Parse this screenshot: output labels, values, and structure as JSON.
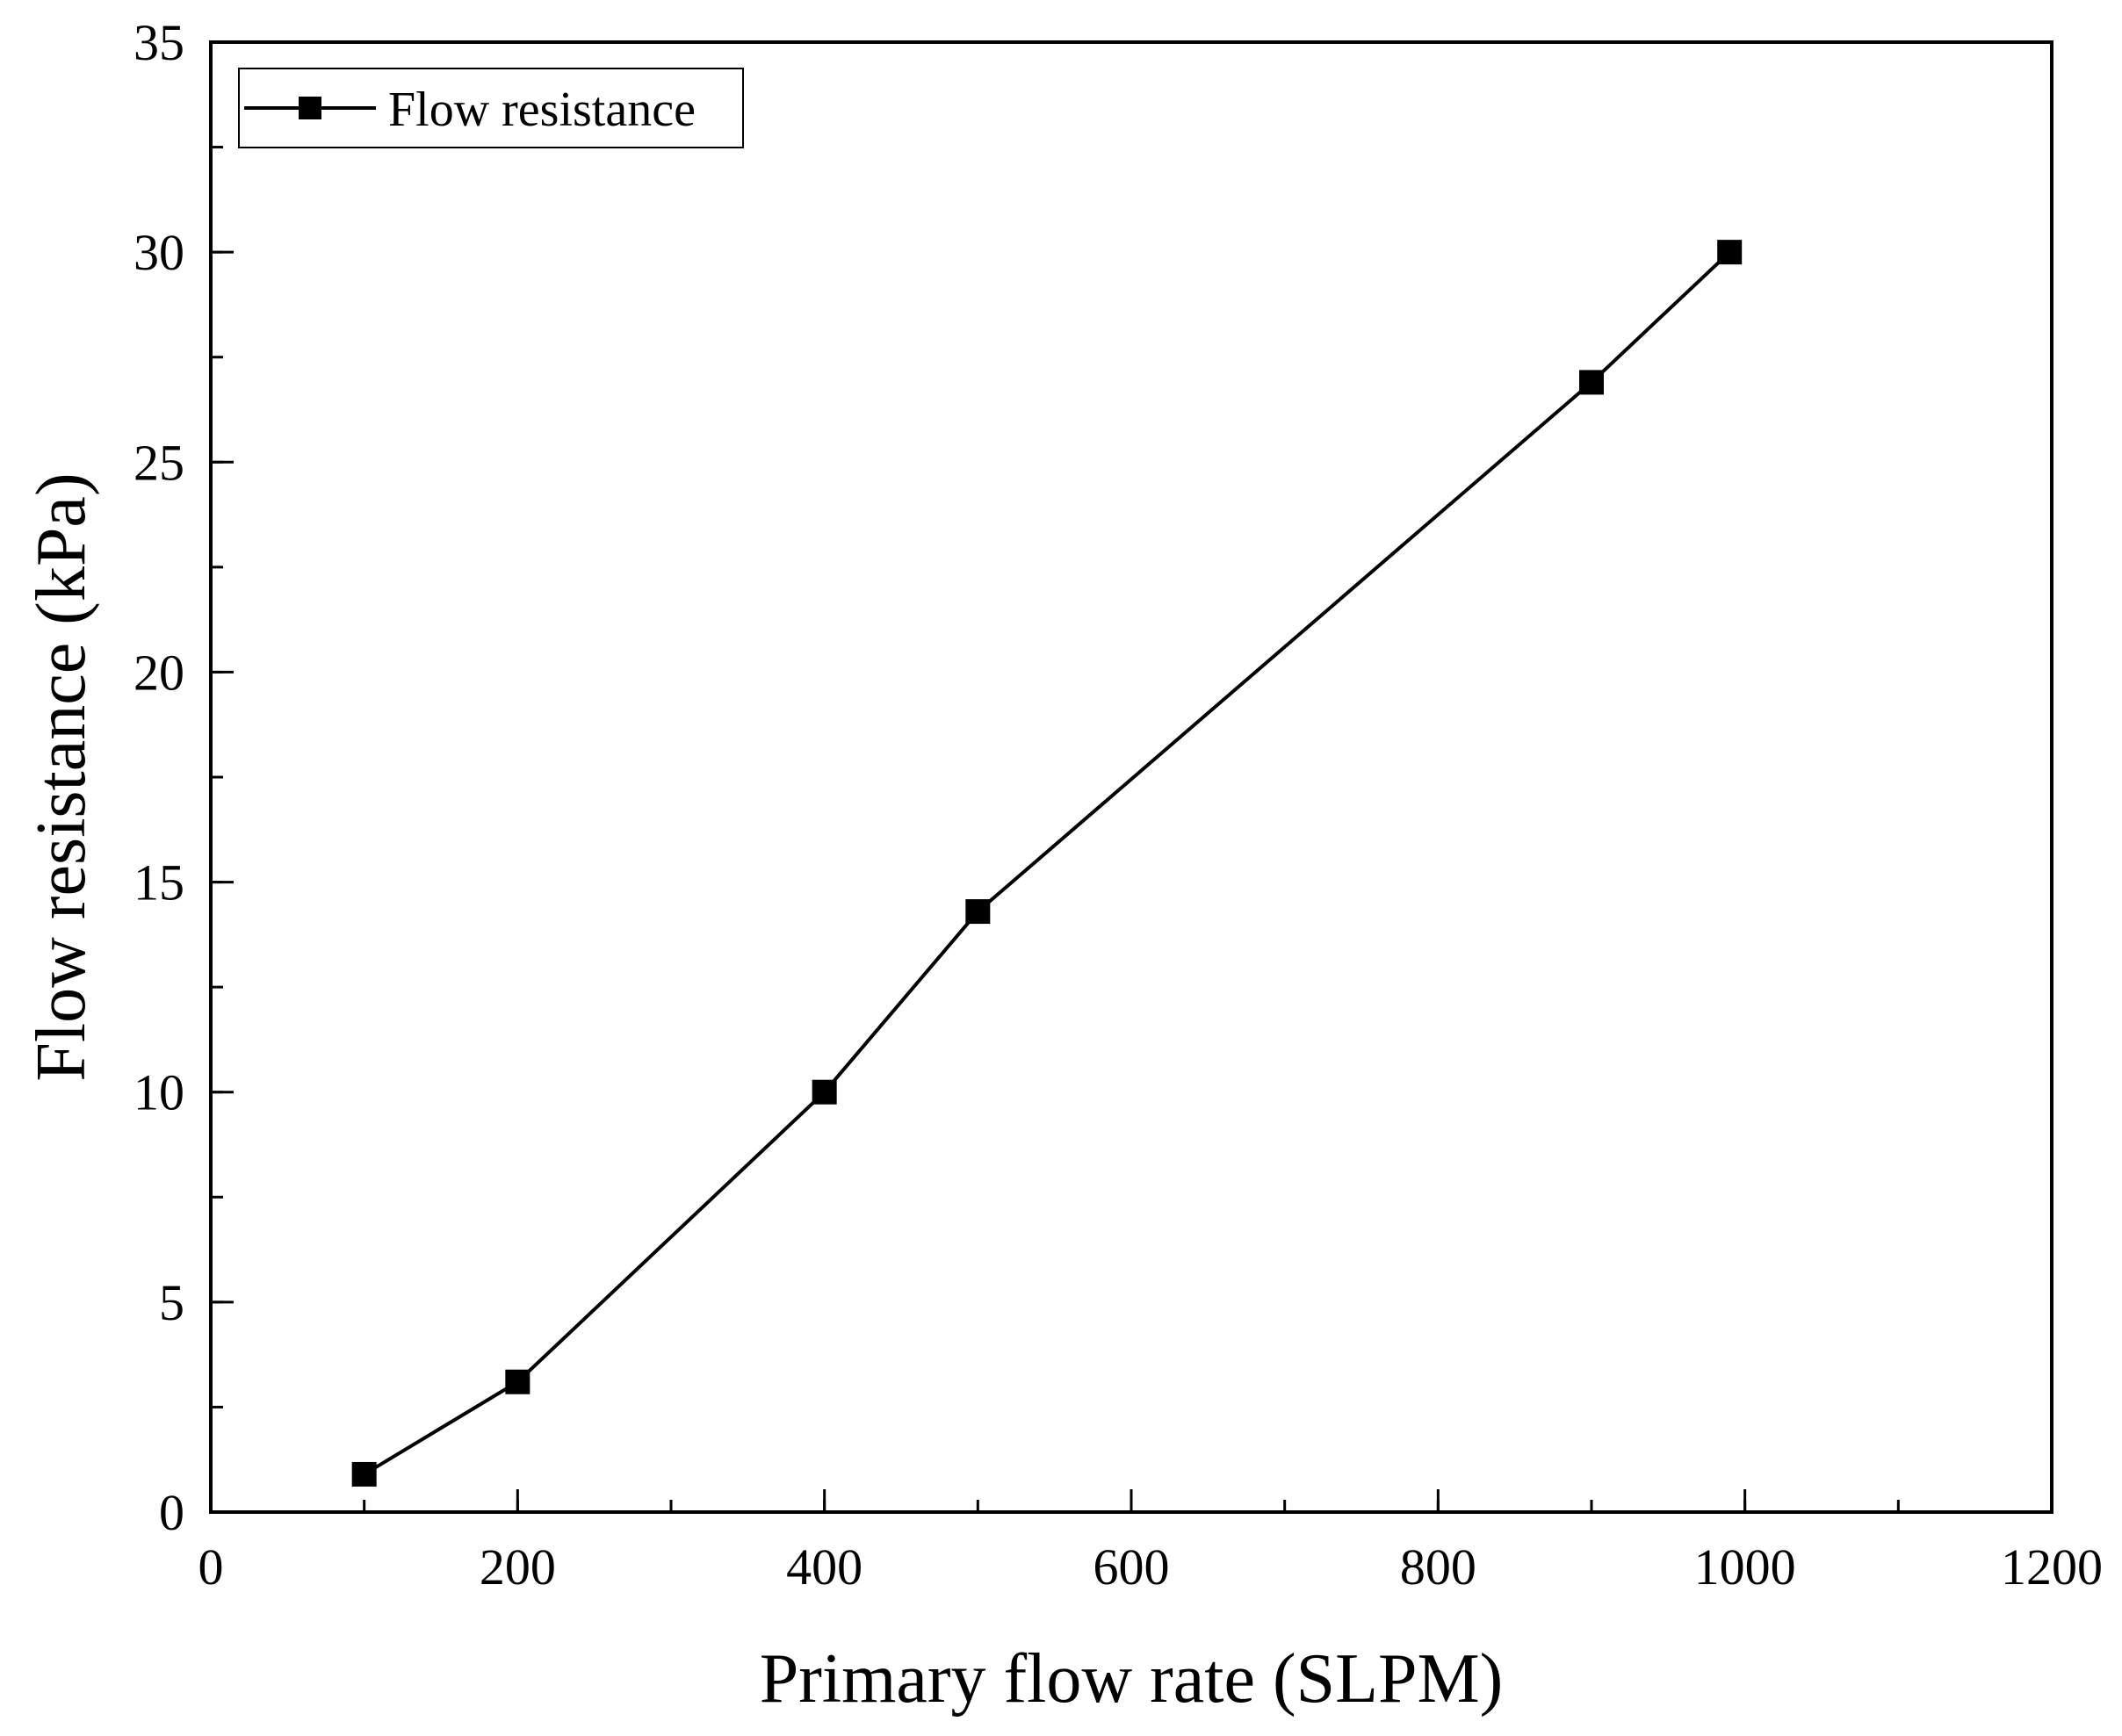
{
  "chart_data": {
    "type": "line",
    "title": "",
    "xlabel": "Primary flow rate (SLPM)",
    "ylabel": "Flow resistance (kPa)",
    "xlim": [
      0,
      1200
    ],
    "ylim": [
      0,
      35
    ],
    "x_ticks": [
      0,
      200,
      400,
      600,
      800,
      1000,
      1200
    ],
    "x_tick_labels": [
      "0",
      "200",
      "400",
      "600",
      "800",
      "1000",
      "1200"
    ],
    "x_minor_step": 100,
    "y_ticks": [
      0,
      5,
      10,
      15,
      20,
      25,
      30,
      35
    ],
    "y_tick_labels": [
      "0",
      "5",
      "10",
      "15",
      "20",
      "25",
      "30",
      "35"
    ],
    "y_minor_step": 2.5,
    "grid": false,
    "legend_position": "top-left",
    "series": [
      {
        "name": "Flow resistance",
        "marker": "square",
        "color": "#000000",
        "x": [
          100,
          200,
          400,
          500,
          900,
          990
        ],
        "y": [
          0.9,
          3.1,
          10.0,
          14.3,
          26.9,
          30.0
        ]
      }
    ]
  }
}
